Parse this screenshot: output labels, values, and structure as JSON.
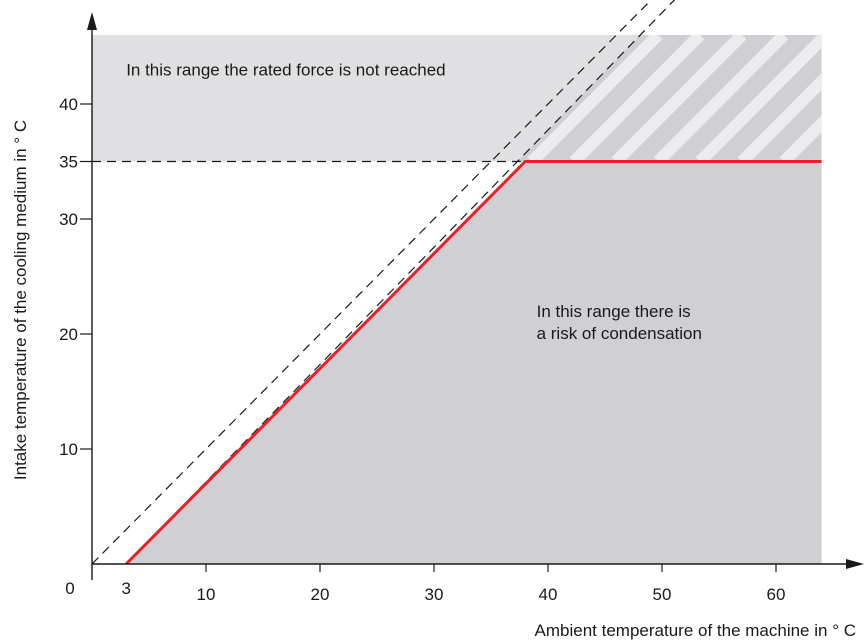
{
  "chart_data": {
    "type": "line",
    "title": "",
    "xlabel": "Ambient temperature of the machine in ° C",
    "ylabel": "Intake temperature of the cooling medium in ° C",
    "xlim": [
      0,
      64
    ],
    "ylim": [
      0,
      46
    ],
    "x_ticks": [
      3,
      10,
      20,
      30,
      40,
      50,
      60
    ],
    "y_ticks": [
      10,
      20,
      30,
      35,
      40
    ],
    "origin_label": "0",
    "grid": false,
    "series": [
      {
        "x": [
          3,
          38,
          64
        ],
        "y": [
          0,
          35,
          35
        ],
        "color": "#e8202a",
        "style": "solid"
      }
    ],
    "reference_lines": [
      {
        "kind": "dashed",
        "x": [
          0,
          51
        ],
        "y": [
          0,
          51
        ]
      },
      {
        "kind": "dashed",
        "x": [
          3,
          53
        ],
        "y": [
          0,
          51
        ]
      },
      {
        "kind": "dashed",
        "x": [
          0,
          38
        ],
        "y": [
          35,
          35
        ]
      }
    ],
    "regions": [
      {
        "name": "rated-force-not-reached",
        "color": "#e0e0e2",
        "y_range": [
          35,
          46
        ],
        "x_range": [
          0,
          64
        ]
      },
      {
        "name": "risk-of-condensation",
        "color": "#d0d0d4",
        "polygon_x": [
          3,
          38,
          64,
          64
        ],
        "polygon_y": [
          0,
          35,
          35,
          0
        ]
      }
    ],
    "annotations": [
      {
        "text": "In this range the rated force is not reached",
        "x": 3,
        "y": 42.5
      },
      {
        "text_lines": [
          "In this range there is",
          "a risk of condensation"
        ],
        "x": 39,
        "y": 21.5
      }
    ],
    "colors": {
      "top_region": "#e0e0e2",
      "bottom_region": "#d0d0d4",
      "hatch": "#ececee",
      "line": "#e8202a",
      "axis": "#1a1a1a"
    }
  }
}
